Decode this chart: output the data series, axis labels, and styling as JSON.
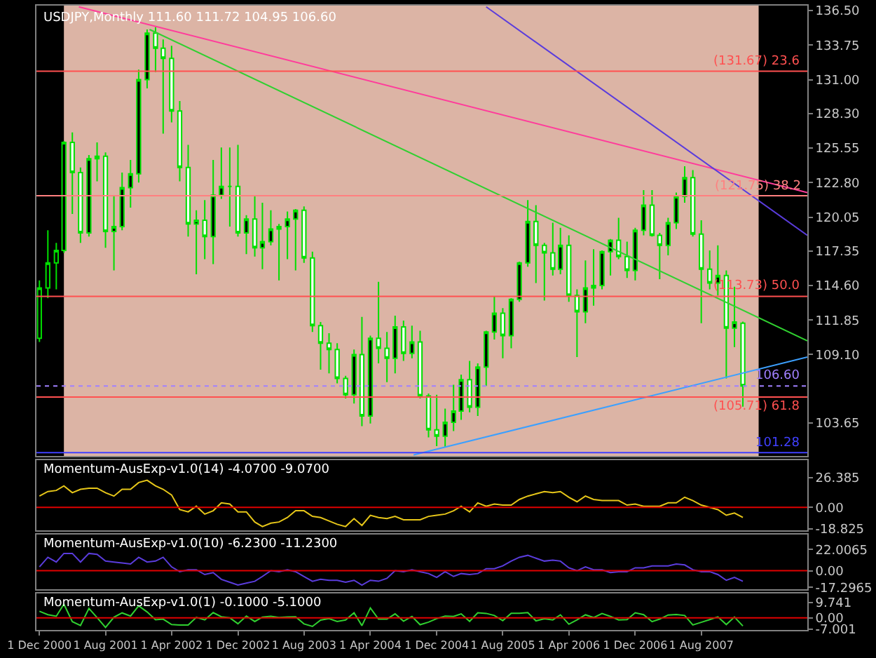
{
  "chart_data": [
    {
      "type": "candlestick",
      "title": "USDJPY,Monthly 111.60 111.72 104.95 106.60",
      "color": "#00e000",
      "x": [
        "2000-12",
        "2001-01",
        "2001-02",
        "2001-03",
        "2001-04",
        "2001-05",
        "2001-06",
        "2001-07",
        "2001-08",
        "2001-09",
        "2001-10",
        "2001-11",
        "2001-12",
        "2002-01",
        "2002-02",
        "2002-03",
        "2002-04",
        "2002-05",
        "2002-06",
        "2002-07",
        "2002-08",
        "2002-09",
        "2002-10",
        "2002-11",
        "2002-12",
        "2003-01",
        "2003-02",
        "2003-03",
        "2003-04",
        "2003-05",
        "2003-06",
        "2003-07",
        "2003-08",
        "2003-09",
        "2003-10",
        "2003-11",
        "2003-12",
        "2004-01",
        "2004-02",
        "2004-03",
        "2004-04",
        "2004-05",
        "2004-06",
        "2004-07",
        "2004-08",
        "2004-09",
        "2004-10",
        "2004-11",
        "2004-12",
        "2005-01",
        "2005-02",
        "2005-03",
        "2005-04",
        "2005-05",
        "2005-06",
        "2005-07",
        "2005-08",
        "2005-09",
        "2005-10",
        "2005-11",
        "2005-12",
        "2006-01",
        "2006-02",
        "2006-03",
        "2006-04",
        "2006-05",
        "2006-06",
        "2006-07",
        "2006-08",
        "2006-09",
        "2006-10",
        "2006-11",
        "2006-12",
        "2007-01",
        "2007-02",
        "2007-03",
        "2007-04",
        "2007-05",
        "2007-06",
        "2007-07",
        "2007-08",
        "2007-09",
        "2007-10",
        "2007-11",
        "2007-12",
        "2008-01"
      ],
      "ohlc": [
        [
          110.4,
          115.0,
          110.1,
          114.4
        ],
        [
          114.4,
          119.0,
          113.6,
          116.4
        ],
        [
          116.4,
          118.0,
          114.3,
          117.4
        ],
        [
          117.4,
          126.1,
          117.2,
          126.0
        ],
        [
          126.0,
          126.8,
          120.3,
          123.6
        ],
        [
          123.6,
          124.0,
          118.0,
          118.8
        ],
        [
          118.8,
          125.0,
          118.5,
          124.7
        ],
        [
          124.7,
          126.0,
          122.9,
          124.9
        ],
        [
          124.9,
          125.2,
          117.6,
          118.9
        ],
        [
          118.9,
          121.8,
          115.8,
          119.3
        ],
        [
          119.3,
          123.6,
          119.0,
          122.4
        ],
        [
          122.4,
          124.6,
          120.8,
          123.5
        ],
        [
          123.5,
          131.8,
          122.8,
          131.0
        ],
        [
          131.0,
          135.0,
          130.3,
          134.7
        ],
        [
          134.7,
          135.2,
          131.6,
          133.5
        ],
        [
          133.5,
          134.2,
          126.7,
          132.7
        ],
        [
          132.7,
          133.7,
          127.6,
          128.5
        ],
        [
          128.5,
          129.3,
          122.9,
          124.0
        ],
        [
          124.0,
          125.8,
          118.5,
          119.5
        ],
        [
          119.5,
          120.6,
          115.5,
          119.8
        ],
        [
          119.8,
          121.4,
          116.7,
          118.5
        ],
        [
          118.5,
          124.6,
          116.3,
          121.8
        ],
        [
          121.8,
          125.6,
          121.5,
          122.5
        ],
        [
          122.5,
          125.6,
          119.3,
          122.5
        ],
        [
          122.5,
          125.8,
          118.5,
          118.8
        ],
        [
          118.8,
          120.2,
          117.1,
          119.9
        ],
        [
          119.9,
          121.8,
          116.9,
          117.6
        ],
        [
          117.6,
          121.2,
          115.9,
          118.1
        ],
        [
          118.1,
          120.6,
          117.8,
          119.1
        ],
        [
          119.1,
          119.5,
          115.0,
          119.3
        ],
        [
          119.3,
          120.5,
          116.7,
          119.9
        ],
        [
          119.9,
          120.7,
          115.8,
          120.6
        ],
        [
          120.6,
          120.9,
          116.4,
          116.8
        ],
        [
          116.8,
          117.3,
          110.9,
          111.4
        ],
        [
          111.4,
          111.7,
          107.9,
          110.0
        ],
        [
          110.0,
          110.8,
          107.6,
          109.5
        ],
        [
          109.5,
          110.0,
          106.8,
          107.2
        ],
        [
          107.2,
          107.4,
          105.6,
          105.9
        ],
        [
          105.9,
          109.5,
          105.2,
          109.1
        ],
        [
          109.1,
          112.1,
          103.4,
          104.2
        ],
        [
          104.2,
          110.6,
          103.6,
          110.4
        ],
        [
          110.4,
          114.9,
          108.4,
          109.6
        ],
        [
          109.6,
          110.9,
          106.9,
          108.8
        ],
        [
          108.8,
          112.2,
          107.6,
          111.3
        ],
        [
          111.3,
          111.8,
          108.6,
          109.2
        ],
        [
          109.2,
          111.4,
          108.8,
          110.1
        ],
        [
          110.1,
          111.0,
          105.6,
          105.8
        ],
        [
          105.8,
          106.0,
          102.5,
          103.1
        ],
        [
          103.1,
          105.9,
          101.8,
          102.6
        ],
        [
          102.6,
          104.8,
          101.7,
          103.7
        ],
        [
          103.7,
          106.7,
          103.0,
          104.6
        ],
        [
          104.6,
          107.5,
          103.9,
          107.1
        ],
        [
          107.1,
          108.6,
          104.5,
          104.9
        ],
        [
          104.9,
          108.4,
          104.2,
          108.1
        ],
        [
          108.1,
          111.0,
          106.6,
          110.9
        ],
        [
          110.9,
          113.7,
          110.3,
          112.4
        ],
        [
          112.4,
          112.8,
          108.8,
          110.6
        ],
        [
          110.6,
          113.6,
          109.6,
          113.5
        ],
        [
          113.5,
          116.5,
          113.3,
          116.4
        ],
        [
          116.4,
          121.4,
          116.1,
          119.7
        ],
        [
          119.7,
          121.0,
          114.8,
          117.8
        ],
        [
          117.8,
          118.0,
          113.4,
          117.2
        ],
        [
          117.2,
          119.6,
          115.4,
          115.9
        ],
        [
          115.9,
          119.2,
          115.5,
          117.8
        ],
        [
          117.8,
          118.6,
          113.3,
          113.8
        ],
        [
          113.8,
          114.3,
          108.9,
          112.5
        ],
        [
          112.5,
          116.6,
          111.6,
          114.4
        ],
        [
          114.4,
          117.5,
          113.0,
          114.6
        ],
        [
          114.6,
          117.4,
          114.3,
          117.3
        ],
        [
          117.3,
          118.3,
          115.4,
          118.2
        ],
        [
          118.2,
          120.0,
          116.7,
          116.9
        ],
        [
          116.9,
          118.1,
          115.2,
          115.8
        ],
        [
          115.8,
          119.2,
          115.0,
          119.0
        ],
        [
          119.0,
          122.2,
          118.6,
          121.0
        ],
        [
          121.0,
          122.2,
          118.5,
          118.6
        ],
        [
          118.6,
          118.8,
          115.1,
          117.8
        ],
        [
          117.8,
          120.0,
          117.0,
          119.6
        ],
        [
          119.6,
          122.0,
          119.1,
          121.7
        ],
        [
          121.7,
          124.1,
          121.2,
          123.2
        ],
        [
          123.2,
          123.8,
          118.5,
          118.7
        ],
        [
          118.7,
          119.8,
          111.6,
          115.9
        ],
        [
          115.9,
          117.4,
          114.3,
          114.8
        ],
        [
          114.8,
          117.8,
          113.8,
          115.4
        ],
        [
          115.4,
          115.8,
          107.2,
          111.2
        ],
        [
          111.2,
          114.5,
          109.7,
          111.7
        ],
        [
          111.6,
          111.72,
          104.95,
          106.6
        ]
      ],
      "series": [
        {
          "type": "line",
          "color": "#ff3c9b",
          "x": [
            "2001-04-25",
            "2008-08-25"
          ],
          "values": [
            136.8,
            122.0
          ]
        },
        {
          "type": "line",
          "color": "#30d030",
          "x": [
            "2002-01-10",
            "2008-08-25"
          ],
          "values": [
            135.0,
            110.2
          ]
        },
        {
          "type": "line",
          "color": "#5a3cdc",
          "x": [
            "2005-06-01",
            "2008-08-25"
          ],
          "values": [
            136.8,
            118.6
          ]
        },
        {
          "type": "line",
          "color": "#3ca0ff",
          "x": [
            "2004-09-07",
            "2008-08-25"
          ],
          "values": [
            101.1,
            108.9
          ]
        }
      ],
      "xlim": [
        "2000-11-20",
        "2008-08-25"
      ],
      "ylim": [
        101.0,
        136.9
      ],
      "yticks": [
        {
          "value": 136.5,
          "label": "136.50"
        },
        {
          "value": 133.75,
          "label": "133.75"
        },
        {
          "value": 131.0,
          "label": "131.00"
        },
        {
          "value": 128.3,
          "label": "128.30"
        },
        {
          "value": 125.55,
          "label": "125.55"
        },
        {
          "value": 122.8,
          "label": "122.80"
        },
        {
          "value": 120.05,
          "label": "120.05"
        },
        {
          "value": 117.35,
          "label": "117.35"
        },
        {
          "value": 114.6,
          "label": "114.60"
        },
        {
          "value": 111.85,
          "label": "111.85"
        },
        {
          "value": 109.1,
          "label": "109.10"
        },
        {
          "value": 103.65,
          "label": "103.65"
        }
      ],
      "ref_lines": [
        {
          "axis": "y",
          "value": 131.67,
          "label": "(131.67) 23.6",
          "color": "#ff5050"
        },
        {
          "axis": "y",
          "value": 121.75,
          "label": "(121.75) 38.2",
          "color": "#ff8080"
        },
        {
          "axis": "y",
          "value": 113.73,
          "label": "(113.73) 50.0",
          "color": "#ff5050"
        },
        {
          "axis": "y",
          "value": 105.71,
          "label": "(105.71) 61.8",
          "color": "#ff5050"
        },
        {
          "axis": "y",
          "value": 106.6,
          "label": "106.60",
          "color": "#a080ff",
          "line_style": "dotted"
        },
        {
          "axis": "y",
          "value": 101.28,
          "label": "101.28",
          "color": "#4040ff"
        }
      ],
      "bands": [
        {
          "axis": "x",
          "from": "2001-03-01",
          "to": "2008-02-28",
          "color": "#dcb4a5"
        }
      ],
      "tick_labels": "y"
    },
    {
      "type": "line",
      "title": "Momentum-AusExp-v1.0(14) -4.0700 -9.0700",
      "x": [
        "2000-12",
        "2001-01",
        "2001-02",
        "2001-03",
        "2001-04",
        "2001-05",
        "2001-06",
        "2001-07",
        "2001-08",
        "2001-09",
        "2001-10",
        "2001-11",
        "2001-12",
        "2002-01",
        "2002-02",
        "2002-03",
        "2002-04",
        "2002-05",
        "2002-06",
        "2002-07",
        "2002-08",
        "2002-09",
        "2002-10",
        "2002-11",
        "2002-12",
        "2003-01",
        "2003-02",
        "2003-03",
        "2003-04",
        "2003-05",
        "2003-06",
        "2003-07",
        "2003-08",
        "2003-09",
        "2003-10",
        "2003-11",
        "2003-12",
        "2004-01",
        "2004-02",
        "2004-03",
        "2004-04",
        "2004-05",
        "2004-06",
        "2004-07",
        "2004-08",
        "2004-09",
        "2004-10",
        "2004-11",
        "2004-12",
        "2005-01",
        "2005-02",
        "2005-03",
        "2005-04",
        "2005-05",
        "2005-06",
        "2005-07",
        "2005-08",
        "2005-09",
        "2005-10",
        "2005-11",
        "2005-12",
        "2006-01",
        "2006-02",
        "2006-03",
        "2006-04",
        "2006-05",
        "2006-06",
        "2006-07",
        "2006-08",
        "2006-09",
        "2006-10",
        "2006-11",
        "2006-12",
        "2007-01",
        "2007-02",
        "2007-03",
        "2007-04",
        "2007-05",
        "2007-06",
        "2007-07",
        "2007-08",
        "2007-09",
        "2007-10",
        "2007-11",
        "2007-12",
        "2008-01"
      ],
      "series": [
        {
          "color": "#e6c619",
          "values": [
            10,
            14,
            15,
            19,
            13,
            16,
            17,
            17,
            13,
            10,
            16,
            16,
            22,
            24,
            19,
            16,
            11,
            -2,
            -4,
            1,
            -6,
            -3,
            4,
            3,
            -4,
            -4,
            -13,
            -17,
            -14,
            -13,
            -9,
            -3,
            -3,
            -8,
            -9,
            -12,
            -15,
            -17,
            -10,
            -16,
            -7,
            -9,
            -10,
            -8,
            -11,
            -11,
            -11,
            -8,
            -7,
            -6,
            -3,
            1,
            -4,
            4,
            1,
            3,
            2,
            2,
            7,
            10,
            12,
            14,
            13,
            14,
            9,
            5,
            10,
            7,
            6,
            6,
            6,
            2,
            3,
            1,
            1,
            1,
            4,
            4,
            9,
            6,
            2,
            0,
            -2,
            -7,
            -5,
            -9
          ]
        }
      ],
      "xlim": [
        "2000-11-20",
        "2008-08-25"
      ],
      "ylim": [
        -20.5,
        42.0
      ],
      "yticks": [
        26.385,
        {
          "value": 0,
          "label": "0.00"
        },
        -18.825
      ],
      "ref_lines": [
        {
          "axis": "y",
          "value": 0,
          "color": "#e00000"
        }
      ],
      "tick_labels": "y"
    },
    {
      "type": "line",
      "title": "Momentum-AusExp-v1.0(10) -6.2300 -11.2300",
      "x": [
        "2000-12",
        "2001-01",
        "2001-02",
        "2001-03",
        "2001-04",
        "2001-05",
        "2001-06",
        "2001-07",
        "2001-08",
        "2001-09",
        "2001-10",
        "2001-11",
        "2001-12",
        "2002-01",
        "2002-02",
        "2002-03",
        "2002-04",
        "2002-05",
        "2002-06",
        "2002-07",
        "2002-08",
        "2002-09",
        "2002-10",
        "2002-11",
        "2002-12",
        "2003-01",
        "2003-02",
        "2003-03",
        "2003-04",
        "2003-05",
        "2003-06",
        "2003-07",
        "2003-08",
        "2003-09",
        "2003-10",
        "2003-11",
        "2003-12",
        "2004-01",
        "2004-02",
        "2004-03",
        "2004-04",
        "2004-05",
        "2004-06",
        "2004-07",
        "2004-08",
        "2004-09",
        "2004-10",
        "2004-11",
        "2004-12",
        "2005-01",
        "2005-02",
        "2005-03",
        "2005-04",
        "2005-05",
        "2005-06",
        "2005-07",
        "2005-08",
        "2005-09",
        "2005-10",
        "2005-11",
        "2005-12",
        "2006-01",
        "2006-02",
        "2006-03",
        "2006-04",
        "2006-05",
        "2006-06",
        "2006-07",
        "2006-08",
        "2006-09",
        "2006-10",
        "2006-11",
        "2006-12",
        "2007-01",
        "2007-02",
        "2007-03",
        "2007-04",
        "2007-05",
        "2007-06",
        "2007-07",
        "2007-08",
        "2007-09",
        "2007-10",
        "2007-11",
        "2007-12",
        "2008-01"
      ],
      "series": [
        {
          "color": "#5a3cdc",
          "values": [
            4,
            14,
            9,
            18,
            18,
            9,
            18,
            17,
            10,
            9,
            8,
            7,
            14,
            9,
            10,
            14,
            4,
            -1,
            1,
            1,
            -4,
            -2,
            -9,
            -12,
            -15,
            -13,
            -11,
            -6,
            0,
            -1,
            1,
            -1,
            -6,
            -11,
            -9,
            -10,
            -10,
            -12,
            -10,
            -15,
            -10,
            -11,
            -8,
            0,
            -1,
            1,
            -1,
            -3,
            -7,
            -1,
            -6,
            -3,
            -4,
            -3,
            2,
            2,
            5,
            10,
            14,
            16,
            13,
            10,
            11,
            10,
            3,
            0,
            4,
            1,
            1,
            -2,
            -1,
            -1,
            3,
            3,
            5,
            5,
            5,
            7,
            6,
            1,
            -1,
            -1,
            -4,
            -10,
            -7,
            -11
          ]
        }
      ],
      "xlim": [
        "2000-11-20",
        "2008-08-25"
      ],
      "ylim": [
        -19.5,
        38.0
      ],
      "yticks": [
        22.0065,
        {
          "value": 0,
          "label": "0.00"
        },
        -17.2965
      ],
      "ref_lines": [
        {
          "axis": "y",
          "value": 0,
          "color": "#e00000"
        }
      ],
      "tick_labels": "y"
    },
    {
      "type": "line",
      "title": "Momentum-AusExp-v1.0(1) -0.1000 -5.1000",
      "x": [
        "2000-12",
        "2001-01",
        "2001-02",
        "2001-03",
        "2001-04",
        "2001-05",
        "2001-06",
        "2001-07",
        "2001-08",
        "2001-09",
        "2001-10",
        "2001-11",
        "2001-12",
        "2002-01",
        "2002-02",
        "2002-03",
        "2002-04",
        "2002-05",
        "2002-06",
        "2002-07",
        "2002-08",
        "2002-09",
        "2002-10",
        "2002-11",
        "2002-12",
        "2003-01",
        "2003-02",
        "2003-03",
        "2003-04",
        "2003-05",
        "2003-06",
        "2003-07",
        "2003-08",
        "2003-09",
        "2003-10",
        "2003-11",
        "2003-12",
        "2004-01",
        "2004-02",
        "2004-03",
        "2004-04",
        "2004-05",
        "2004-06",
        "2004-07",
        "2004-08",
        "2004-09",
        "2004-10",
        "2004-11",
        "2004-12",
        "2005-01",
        "2005-02",
        "2005-03",
        "2005-04",
        "2005-05",
        "2005-06",
        "2005-07",
        "2005-08",
        "2005-09",
        "2005-10",
        "2005-11",
        "2005-12",
        "2006-01",
        "2006-02",
        "2006-03",
        "2006-04",
        "2006-05",
        "2006-06",
        "2006-07",
        "2006-08",
        "2006-09",
        "2006-10",
        "2006-11",
        "2006-12",
        "2007-01",
        "2007-02",
        "2007-03",
        "2007-04",
        "2007-05",
        "2007-06",
        "2007-07",
        "2007-08",
        "2007-09",
        "2007-10",
        "2007-11",
        "2007-12",
        "2008-01"
      ],
      "series": [
        {
          "color": "#30d030",
          "values": [
            4.1,
            2.0,
            1.0,
            8.6,
            -2.4,
            -4.8,
            5.9,
            0.2,
            -6.0,
            0.4,
            3.1,
            1.1,
            7.5,
            3.7,
            -1.2,
            -0.8,
            -4.2,
            -4.5,
            -4.5,
            0.3,
            -1.3,
            3.3,
            0.7,
            0.0,
            -3.7,
            1.1,
            -2.3,
            0.5,
            1.0,
            0.2,
            0.6,
            0.7,
            -3.8,
            -5.4,
            -1.4,
            -0.5,
            -2.3,
            -1.3,
            3.2,
            -4.9,
            6.2,
            -0.8,
            -0.8,
            2.5,
            -2.1,
            0.9,
            -4.3,
            -2.7,
            -0.5,
            1.1,
            0.9,
            2.5,
            -2.2,
            3.2,
            2.8,
            1.5,
            -1.8,
            2.9,
            2.9,
            3.3,
            -1.9,
            -0.6,
            -1.3,
            1.9,
            -4.0,
            -1.3,
            1.9,
            0.2,
            2.7,
            0.9,
            -1.3,
            -1.1,
            3.2,
            2.0,
            -2.4,
            -0.8,
            1.8,
            2.1,
            1.5,
            -4.5,
            -2.8,
            -1.1,
            0.6,
            -4.2,
            0.5,
            -5.1
          ]
        }
      ],
      "xlim": [
        "2000-11-20",
        "2008-08-25"
      ],
      "ylim": [
        -7.6,
        15.5
      ],
      "yticks": [
        9.741,
        {
          "value": 0,
          "label": "0.00"
        },
        -7.001
      ],
      "xticks": [
        {
          "value": "2000-12-01",
          "label": "1 Dec 2000"
        },
        {
          "value": "2001-08-01",
          "label": "1 Aug 2001"
        },
        {
          "value": "2002-04-01",
          "label": "1 Apr 2002"
        },
        {
          "value": "2002-12-01",
          "label": "1 Dec 2002"
        },
        {
          "value": "2003-08-01",
          "label": "1 Aug 2003"
        },
        {
          "value": "2004-04-01",
          "label": "1 Apr 2004"
        },
        {
          "value": "2004-12-01",
          "label": "1 Dec 2004"
        },
        {
          "value": "2005-08-01",
          "label": "1 Aug 2005"
        },
        {
          "value": "2006-04-01",
          "label": "1 Apr 2006"
        },
        {
          "value": "2006-12-01",
          "label": "1 Dec 2006"
        },
        {
          "value": "2007-08-01",
          "label": "1 Aug 2007"
        }
      ],
      "ref_lines": [
        {
          "axis": "y",
          "value": 0,
          "color": "#e00000"
        }
      ]
    }
  ]
}
